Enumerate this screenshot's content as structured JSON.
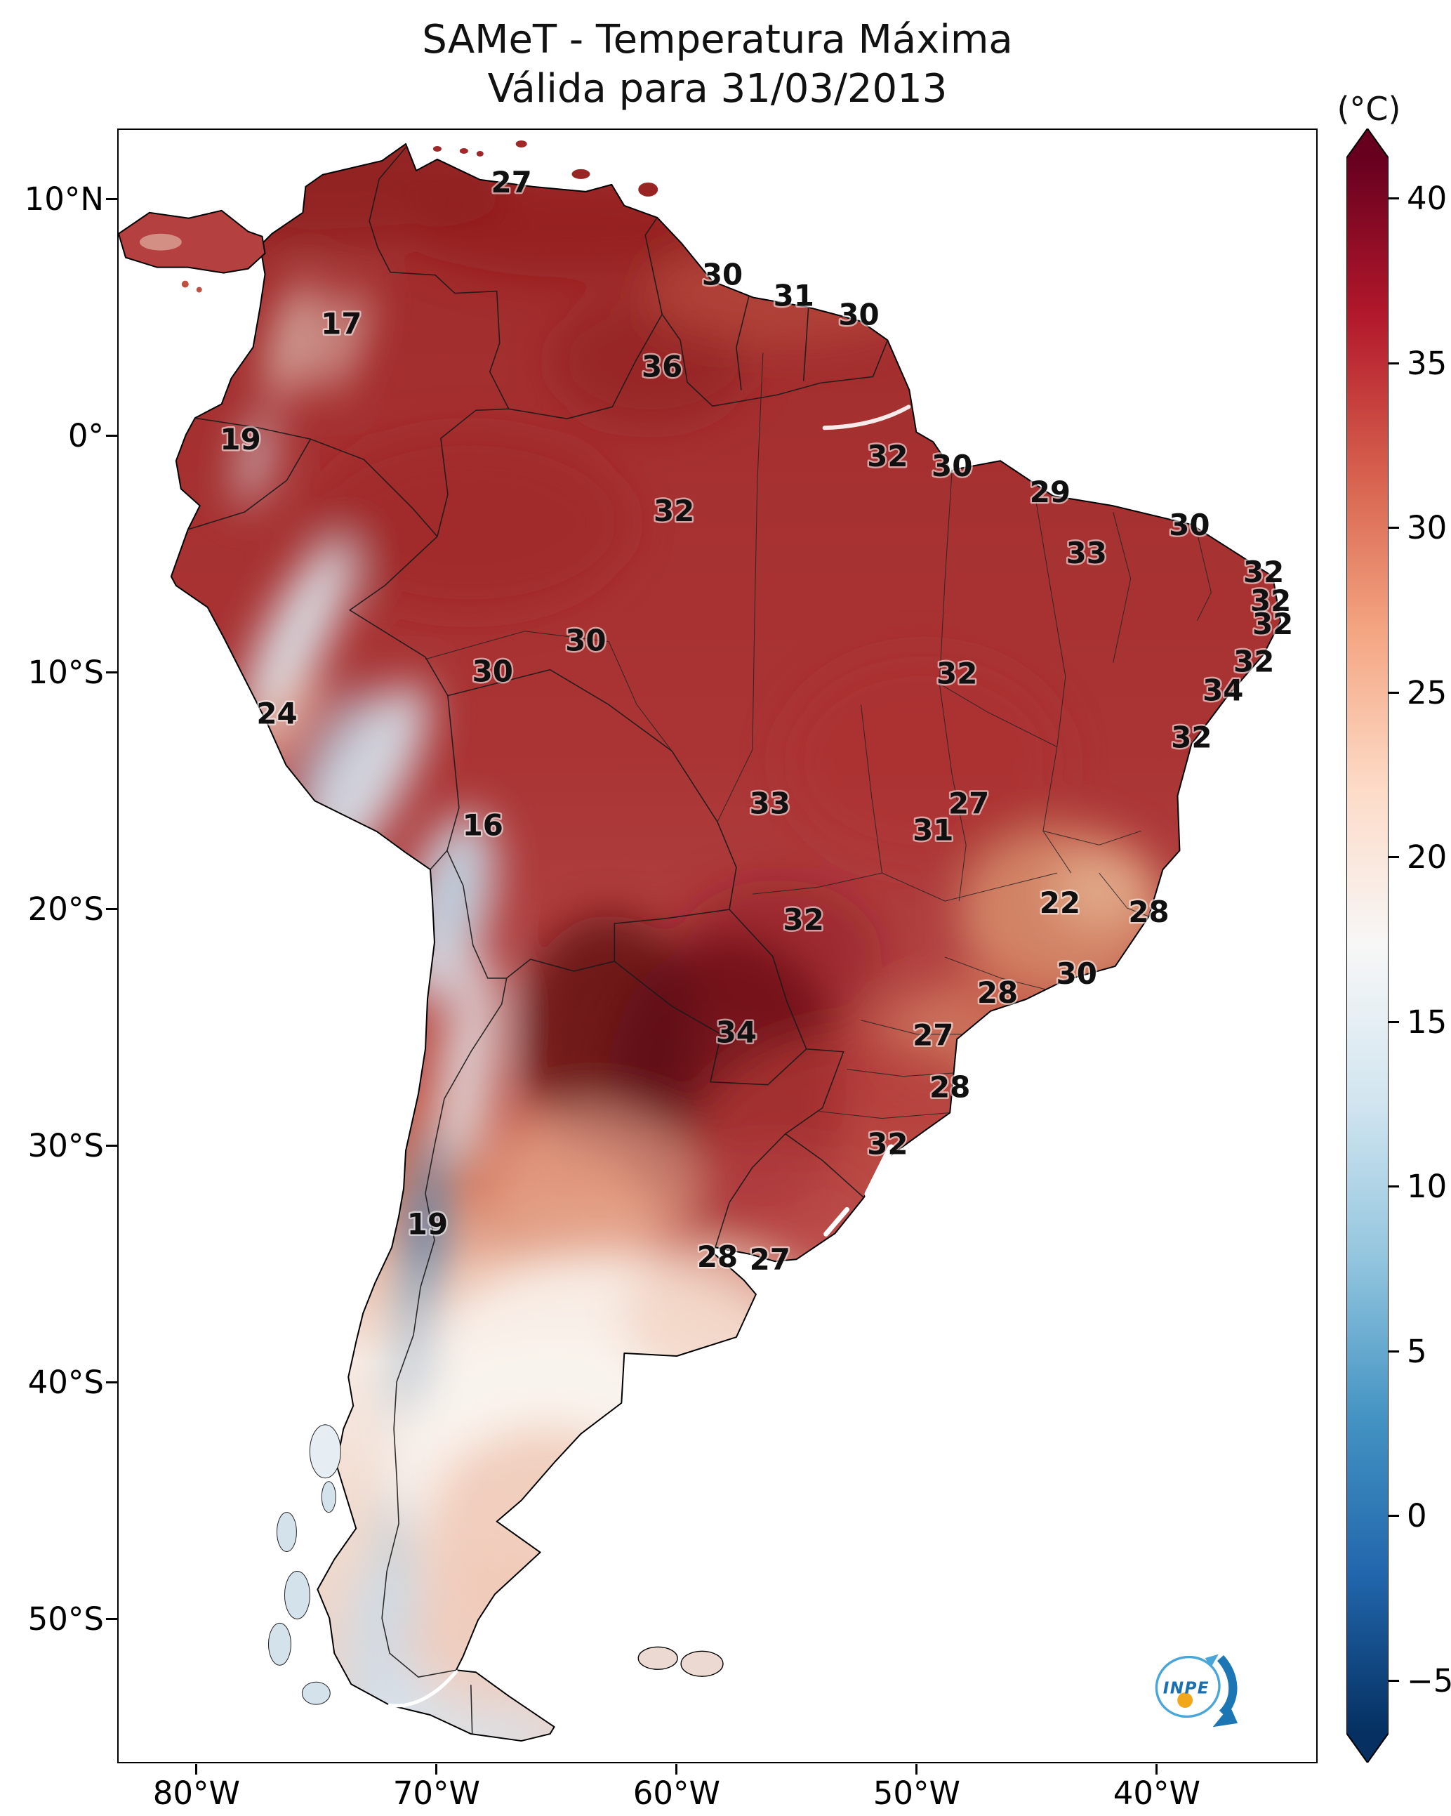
{
  "title": {
    "line1": "SAMeT - Temperatura Máxima",
    "line2": "Válida para 31/03/2013"
  },
  "colorbar": {
    "unit_label": "(°C)",
    "ticks": [
      40,
      35,
      30,
      25,
      20,
      15,
      10,
      5,
      0,
      -5
    ],
    "colors_top_to_bottom": [
      "#67001f",
      "#b2182b",
      "#d6604d",
      "#f4a582",
      "#fddbc7",
      "#f7f7f7",
      "#d1e5f0",
      "#92c5de",
      "#4393c3",
      "#2166ac",
      "#053061"
    ]
  },
  "axes": {
    "y_ticks": [
      {
        "label": "10°N",
        "lat": 10
      },
      {
        "label": "0°",
        "lat": 0
      },
      {
        "label": "10°S",
        "lat": -10
      },
      {
        "label": "20°S",
        "lat": -20
      },
      {
        "label": "30°S",
        "lat": -30
      },
      {
        "label": "40°S",
        "lat": -40
      },
      {
        "label": "50°S",
        "lat": -50
      }
    ],
    "x_ticks": [
      {
        "label": "80°W",
        "lon": -80
      },
      {
        "label": "70°W",
        "lon": -70
      },
      {
        "label": "60°W",
        "lon": -60
      },
      {
        "label": "50°W",
        "lon": -50
      },
      {
        "label": "40°W",
        "lon": -40
      }
    ]
  },
  "chart_data": {
    "type": "heatmap",
    "title": "SAMeT - Temperatura Máxima",
    "subtitle": "Válida para 31/03/2013",
    "unit": "°C",
    "colorbar_range": [
      -5,
      40
    ],
    "region": "South America",
    "station_values": [
      {
        "value": 27,
        "lon": -66.9,
        "lat": 10.8
      },
      {
        "value": 30,
        "lon": -58.1,
        "lat": 6.9
      },
      {
        "value": 31,
        "lon": -55.1,
        "lat": 6.0
      },
      {
        "value": 30,
        "lon": -52.4,
        "lat": 5.2
      },
      {
        "value": 17,
        "lon": -74.0,
        "lat": 4.8
      },
      {
        "value": 36,
        "lon": -60.6,
        "lat": 3.0
      },
      {
        "value": 19,
        "lon": -78.2,
        "lat": -0.1
      },
      {
        "value": 32,
        "lon": -51.2,
        "lat": -0.8
      },
      {
        "value": 30,
        "lon": -48.5,
        "lat": -1.2
      },
      {
        "value": 29,
        "lon": -44.4,
        "lat": -2.3
      },
      {
        "value": 32,
        "lon": -60.1,
        "lat": -3.1
      },
      {
        "value": 30,
        "lon": -38.6,
        "lat": -3.7
      },
      {
        "value": 33,
        "lon": -42.9,
        "lat": -4.9
      },
      {
        "value": 32,
        "lon": -35.5,
        "lat": -5.7
      },
      {
        "value": 32,
        "lon": -35.2,
        "lat": -6.9
      },
      {
        "value": 32,
        "lon": -35.1,
        "lat": -7.9
      },
      {
        "value": 30,
        "lon": -63.8,
        "lat": -8.6
      },
      {
        "value": 32,
        "lon": -35.9,
        "lat": -9.5
      },
      {
        "value": 30,
        "lon": -67.7,
        "lat": -9.9
      },
      {
        "value": 32,
        "lon": -48.3,
        "lat": -10.0
      },
      {
        "value": 34,
        "lon": -37.2,
        "lat": -10.7
      },
      {
        "value": 24,
        "lon": -76.7,
        "lat": -11.7
      },
      {
        "value": 32,
        "lon": -38.5,
        "lat": -12.7
      },
      {
        "value": 33,
        "lon": -56.1,
        "lat": -15.5
      },
      {
        "value": 27,
        "lon": -47.8,
        "lat": -15.5
      },
      {
        "value": 16,
        "lon": -68.1,
        "lat": -16.4
      },
      {
        "value": 31,
        "lon": -49.3,
        "lat": -16.6
      },
      {
        "value": 32,
        "lon": -54.7,
        "lat": -20.4
      },
      {
        "value": 22,
        "lon": -44.0,
        "lat": -19.7
      },
      {
        "value": 28,
        "lon": -40.3,
        "lat": -20.1
      },
      {
        "value": 28,
        "lon": -46.6,
        "lat": -23.5
      },
      {
        "value": 30,
        "lon": -43.3,
        "lat": -22.7
      },
      {
        "value": 34,
        "lon": -57.5,
        "lat": -25.2
      },
      {
        "value": 27,
        "lon": -49.3,
        "lat": -25.3
      },
      {
        "value": 28,
        "lon": -48.6,
        "lat": -27.5
      },
      {
        "value": 32,
        "lon": -51.2,
        "lat": -29.9
      },
      {
        "value": 19,
        "lon": -70.4,
        "lat": -33.3
      },
      {
        "value": 28,
        "lon": -58.3,
        "lat": -34.7
      },
      {
        "value": 27,
        "lon": -56.1,
        "lat": -34.8
      }
    ]
  },
  "logo": {
    "text": "INPE"
  }
}
